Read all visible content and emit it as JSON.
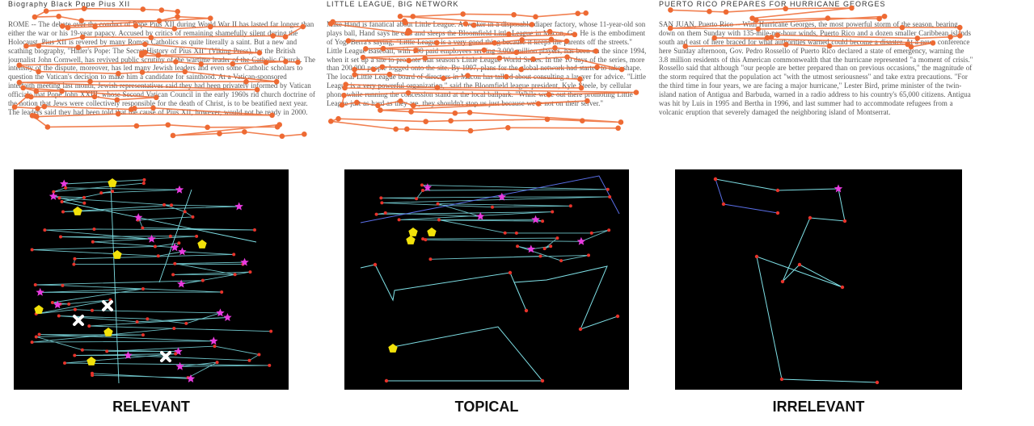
{
  "columns": [
    {
      "id": "relevant",
      "caption": "RELEVANT",
      "doc_title": "Biography   Black   Pope   Pius XII",
      "doc_body": "ROME -- The debate over the conduct of Pope Pius XII during World War II has lasted far longer than either the war or his 19-year papacy. Accused by critics of remaining shamefully silent during the Holocaust, Pius XII is revered by many Roman Catholics as quite literally a saint. But a new and scathing biography, \"Hitler's Pope: The Secret History of Pius XII\" (Viking Press), by the British journalist John Cornwell, has revived public scrutiny of the wartime leader of the Catholic Church. The intensity of the dispute, moreover, has led many Jewish leaders and even some Catholic scholars to question the Vatican's decision to make him a candidate for sainthood. At a Vatican-sponsored interfaith meeting last month, Jewish representatives said they had been privately informed by Vatican officials that Pope John XXIII, whose Second Vatican Council in the early 1960s rid church doctrine of the notion that Jews were collectively responsible for the death of Christ, is to be beatified next year. The leaders said they had been told that the cause of Pius XII, however, would not be ready in 2000."
    },
    {
      "id": "topical",
      "caption": "TOPICAL",
      "doc_title": "LITTLE   LEAGUE,   BIG   NETWORK",
      "doc_body": "Mike Hand is fanatical about Little League. A worker in a disposable diaper factory, whose 11-year-old son plays ball, Hand says he eats and sleeps the Bloomfield Little League in Macon, Ga. He is the embodiment of Yogi Berra's saying, \"Little League is a very good thing because it keeps the parents off the streets.\" Little League Baseball, with 100 paid employees serving 3,000 million players, has been on the since 1994, when it set up a site to promote that season's Little League World Series. In the 10 days of the series, more than 200,000 people logged onto the site. By 1997, plans for the global network had started to take shape. The local Little League board of directors in Macon has talked about consulting a lawyer for advice. \"Little League is a very powerful organization,\" said the Bloomfield league president, Kyle Steele, by cellular phone while running the concession stand at the local ballpark. \"While we're out there promoting Little League just as hard as they are, they shouldn't stop us just because we're not on their server.\""
    },
    {
      "id": "irrelevant",
      "caption": "IRRELEVANT",
      "doc_title": "PUERTO   RICO   PREPARES   FOR   HURRICANE   GEORGES",
      "doc_body": "SAN JUAN, Puerto Rico -- With Hurricane Georges, the most powerful storm of the season, bearing down on them Sunday with 135-mile-per-hour winds, Puerto Rico and a dozen smaller Caribbean islands south and east of here braced for what authorities warned could become a disaster. At a news conference here Sunday afternoon, Gov. Pedro Rossello of Puerto Rico declared a state of emergency, warning the 3.8 million residents of this American commonwealth that the hurricane represented \"a moment of crisis.\" Rossello said that although \"our people are better prepared than on previous occasions,\" the magnitude of the storm required that the population act \"with the utmost seriousness\" and take extra precautions. \"For the third time in four years, we are facing a major hurricane,\" Lester Bird, prime minister of the twin-island nation of Antigua and Barbuda, warned in a radio address to his country's 65,000 citizens. Antigua was hit by Luis in 1995 and Bertha in 1996, and last summer had to accommodate refugees from a volcanic eruption that severely damaged the neighboring island of Montserrat."
    }
  ],
  "colors": {
    "gaze_path": "#ee6a33",
    "panel_background": "#000000",
    "panel_line": "#7fe0e6",
    "fixation_dot": "#e8332b",
    "star_marker": "#e83be0",
    "pentagon_marker": "#f2e20a",
    "cross_marker": "#ffffff",
    "panel_line_secondary": "#5a6fe8"
  }
}
